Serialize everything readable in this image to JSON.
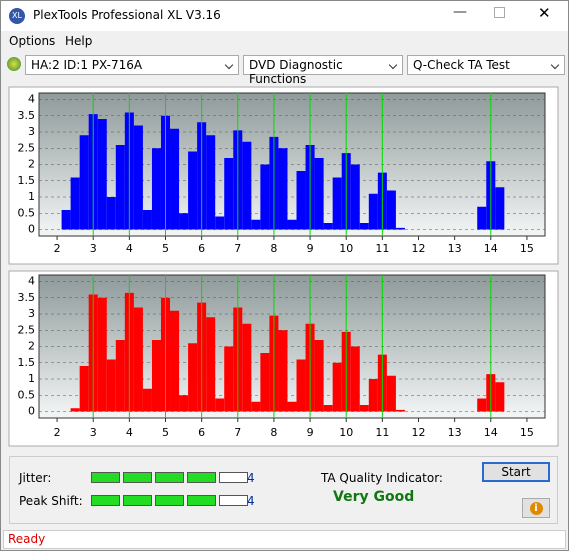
{
  "window": {
    "title": "PlexTools Professional XL V3.16",
    "menu": [
      "Options",
      "Help"
    ],
    "drive": "HA:2 ID:1  PX-716A",
    "function": "DVD Diagnostic Functions",
    "test": "Q-Check TA Test"
  },
  "chart_data": [
    {
      "type": "bar",
      "color": "#0000ff",
      "guide_color": "#00dd00",
      "grid": true,
      "x": [
        2.25,
        2.5,
        2.75,
        3,
        3.25,
        3.5,
        3.75,
        4,
        4.25,
        4.5,
        4.75,
        5,
        5.25,
        5.5,
        5.75,
        6,
        6.25,
        6.5,
        6.75,
        7,
        7.25,
        7.5,
        7.75,
        8,
        8.25,
        8.5,
        8.75,
        9,
        9.25,
        9.5,
        9.75,
        10,
        10.25,
        10.5,
        10.75,
        11,
        11.25,
        11.5,
        11.75,
        12,
        12.25,
        12.5,
        12.75,
        13,
        13.25,
        13.5,
        13.75,
        14,
        14.25,
        14.5
      ],
      "values": [
        0.6,
        1.6,
        2.9,
        3.55,
        3.4,
        1.0,
        2.6,
        3.6,
        3.2,
        0.6,
        2.5,
        3.5,
        3.1,
        0.5,
        2.4,
        3.3,
        2.9,
        0.4,
        2.2,
        3.05,
        2.7,
        0.3,
        2.0,
        2.85,
        2.5,
        0.3,
        1.8,
        2.6,
        2.2,
        0.2,
        1.6,
        2.35,
        2.0,
        0.2,
        1.1,
        1.75,
        1.2,
        0.05,
        0,
        0,
        0,
        0,
        0,
        0,
        0,
        0,
        0.7,
        2.1,
        1.3,
        0
      ],
      "guides": [
        3,
        4,
        5,
        6,
        7,
        8,
        9,
        10,
        11,
        14
      ],
      "xlim": [
        1.5,
        15.5
      ],
      "xticks": [
        2,
        3,
        4,
        5,
        6,
        7,
        8,
        9,
        10,
        11,
        12,
        13,
        14,
        15
      ],
      "ylim": [
        -0.2,
        4.2
      ],
      "yticks": [
        0,
        0.5,
        1,
        1.5,
        2,
        2.5,
        3,
        3.5,
        4
      ]
    },
    {
      "type": "bar",
      "color": "#ff0000",
      "guide_color": "#00dd00",
      "grid": true,
      "x": [
        2.25,
        2.5,
        2.75,
        3,
        3.25,
        3.5,
        3.75,
        4,
        4.25,
        4.5,
        4.75,
        5,
        5.25,
        5.5,
        5.75,
        6,
        6.25,
        6.5,
        6.75,
        7,
        7.25,
        7.5,
        7.75,
        8,
        8.25,
        8.5,
        8.75,
        9,
        9.25,
        9.5,
        9.75,
        10,
        10.25,
        10.5,
        10.75,
        11,
        11.25,
        11.5,
        11.75,
        12,
        12.25,
        12.5,
        12.75,
        13,
        13.25,
        13.5,
        13.75,
        14,
        14.25,
        14.5
      ],
      "values": [
        0,
        0.1,
        1.4,
        3.6,
        3.5,
        1.6,
        2.2,
        3.65,
        3.2,
        0.7,
        2.2,
        3.5,
        3.1,
        0.5,
        2.1,
        3.35,
        2.9,
        0.4,
        2.0,
        3.2,
        2.7,
        0.3,
        1.8,
        2.95,
        2.5,
        0.3,
        1.6,
        2.7,
        2.2,
        0.2,
        1.5,
        2.45,
        2.0,
        0.2,
        1.0,
        1.75,
        1.1,
        0.05,
        0,
        0,
        0,
        0,
        0,
        0,
        0,
        0,
        0.4,
        1.15,
        0.9,
        0
      ],
      "guides": [
        3,
        4,
        5,
        6,
        7,
        8,
        9,
        10,
        11,
        14
      ],
      "xlim": [
        1.5,
        15.5
      ],
      "xticks": [
        2,
        3,
        4,
        5,
        6,
        7,
        8,
        9,
        10,
        11,
        12,
        13,
        14,
        15
      ],
      "ylim": [
        -0.2,
        4.2
      ],
      "yticks": [
        0,
        0.5,
        1,
        1.5,
        2,
        2.5,
        3,
        3.5,
        4
      ]
    }
  ],
  "results": {
    "jitter_label": "Jitter:",
    "jitter": 4,
    "peak_shift_label": "Peak Shift:",
    "peak_shift": 4,
    "ta_label": "TA Quality Indicator:",
    "ta_value": "Very Good",
    "start": "Start"
  },
  "status": "Ready"
}
